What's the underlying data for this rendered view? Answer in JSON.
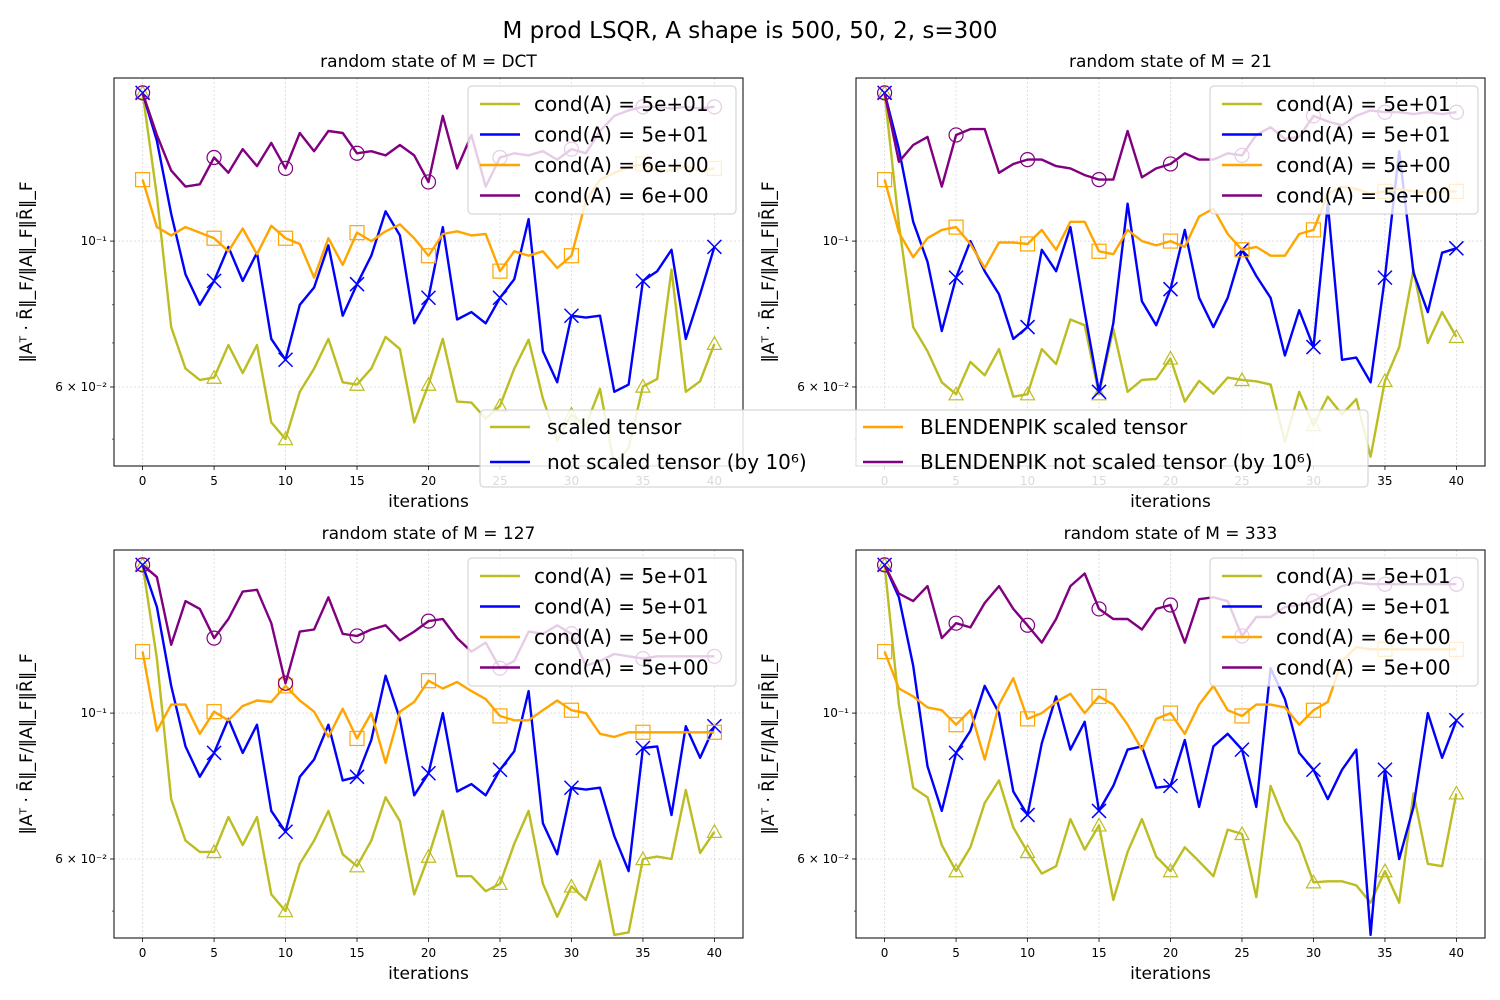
{
  "suptitle": "M prod LSQR, A shape is 500, 50, 2, s=300",
  "figure_legend": {
    "entries": [
      {
        "label": "scaled tensor",
        "color": "#bcbd22"
      },
      {
        "label": "not scaled tensor (by 10⁶)",
        "color": "#0000ff"
      },
      {
        "label": "BLENDENPIK scaled tensor",
        "color": "#ffa500"
      },
      {
        "label": "BLENDENPIK not scaled tensor (by 10⁶)",
        "color": "#800080"
      }
    ]
  },
  "chart_data": [
    {
      "type": "line",
      "title": "random state of M = DCT",
      "xlabel": "iterations",
      "ylabel": "‖Aᵀ · R̄‖_F/‖A‖_F‖R̄‖_F",
      "yscale": "log",
      "ylim": [
        0.0455,
        0.177
      ],
      "xlim": [
        -2,
        42
      ],
      "xticks": [
        0,
        5,
        10,
        15,
        20,
        25,
        30,
        35,
        40
      ],
      "yticks": [
        {
          "value": 0.1,
          "label": "10⁻¹"
        },
        {
          "value": 0.06,
          "label": "6 × 10⁻²"
        }
      ],
      "grid": true,
      "legend": [
        "cond(A) =  5e+01",
        "cond(A) =  5e+01",
        "cond(A) =  6e+00",
        "cond(A) =  6e+00"
      ],
      "series": [
        {
          "name": "scaled tensor",
          "color": "#bcbd22",
          "marker": "triangle",
          "values": [
            0.168,
            0.117,
            0.074,
            0.064,
            0.0615,
            0.062,
            0.0695,
            0.063,
            0.0695,
            0.053,
            0.05,
            0.059,
            0.064,
            0.071,
            0.061,
            0.0605,
            0.064,
            0.0715,
            0.0685,
            0.053,
            0.0605,
            0.071,
            0.057,
            0.0568,
            0.0537,
            0.0562,
            0.064,
            0.0708,
            0.0576,
            0.0498,
            0.0545,
            0.0524,
            0.0596,
            0.0455,
            0.0485,
            0.0601,
            0.0617,
            0.0905,
            0.059,
            0.0612,
            0.0698
          ]
        },
        {
          "name": "not scaled tensor (by 10⁶)",
          "color": "#0000ff",
          "marker": "x",
          "values": [
            0.168,
            0.142,
            0.11,
            0.089,
            0.08,
            0.087,
            0.098,
            0.087,
            0.096,
            0.071,
            0.066,
            0.08,
            0.085,
            0.0985,
            0.077,
            0.086,
            0.095,
            0.111,
            0.102,
            0.075,
            0.082,
            0.105,
            0.076,
            0.078,
            0.075,
            0.082,
            0.0875,
            0.108,
            0.068,
            0.061,
            0.077,
            0.0765,
            0.077,
            0.059,
            0.0605,
            0.087,
            0.09,
            0.097,
            0.071,
            0.083,
            0.098
          ]
        },
        {
          "name": "BLENDENPIK scaled tensor",
          "color": "#ffa500",
          "marker": "square",
          "values": [
            0.124,
            0.105,
            0.102,
            0.105,
            0.103,
            0.101,
            0.0965,
            0.1045,
            0.0955,
            0.1055,
            0.101,
            0.099,
            0.088,
            0.101,
            0.092,
            0.103,
            0.1,
            0.1035,
            0.106,
            0.101,
            0.095,
            0.1025,
            0.1035,
            0.102,
            0.1025,
            0.09,
            0.0965,
            0.095,
            0.0965,
            0.091,
            0.095,
            0.115,
            0.124,
            0.127,
            0.1295,
            0.131,
            0.128,
            0.128,
            0.13,
            0.128,
            0.129
          ]
        },
        {
          "name": "BLENDENPIK not scaled tensor (by 10⁶)",
          "color": "#800080",
          "marker": "circle",
          "values": [
            0.168,
            0.145,
            0.128,
            0.121,
            0.122,
            0.134,
            0.127,
            0.138,
            0.13,
            0.141,
            0.129,
            0.146,
            0.137,
            0.147,
            0.146,
            0.136,
            0.137,
            0.135,
            0.14,
            0.135,
            0.123,
            0.155,
            0.129,
            0.145,
            0.121,
            0.134,
            0.136,
            0.135,
            0.137,
            0.133,
            0.138,
            0.136,
            0.147,
            0.155,
            0.158,
            0.16,
            0.16,
            0.159,
            0.16,
            0.159,
            0.16
          ]
        }
      ]
    },
    {
      "type": "line",
      "title": "random state of M = 21",
      "xlabel": "iterations",
      "ylabel": "‖Aᵀ · R̄‖_F/‖A‖_F‖R̄‖_F",
      "yscale": "log",
      "ylim": [
        0.0455,
        0.177
      ],
      "xlim": [
        -2,
        42
      ],
      "xticks": [
        0,
        5,
        10,
        15,
        20,
        25,
        30,
        35,
        40
      ],
      "yticks": [
        {
          "value": 0.1,
          "label": "10⁻¹"
        },
        {
          "value": 0.06,
          "label": "6 × 10⁻²"
        }
      ],
      "grid": true,
      "legend": [
        "cond(A) =  5e+01",
        "cond(A) =  5e+01",
        "cond(A) =  5e+00",
        "cond(A) =  5e+00"
      ],
      "series": [
        {
          "name": "scaled tensor",
          "color": "#bcbd22",
          "marker": "triangle",
          "values": [
            0.168,
            0.106,
            0.074,
            0.068,
            0.061,
            0.0585,
            0.0655,
            0.0625,
            0.0685,
            0.058,
            0.0585,
            0.0685,
            0.065,
            0.076,
            0.0745,
            0.0585,
            0.0735,
            0.059,
            0.0615,
            0.0617,
            0.0663,
            0.057,
            0.0613,
            0.0586,
            0.062,
            0.0615,
            0.0612,
            0.0605,
            0.0495,
            0.059,
            0.0525,
            0.058,
            0.0545,
            0.0575,
            0.047,
            0.0613,
            0.069,
            0.0905,
            0.07,
            0.078,
            0.0715
          ]
        },
        {
          "name": "not scaled tensor (by 10⁶)",
          "color": "#0000ff",
          "marker": "x",
          "values": [
            0.168,
            0.138,
            0.107,
            0.093,
            0.073,
            0.088,
            0.1,
            0.09,
            0.083,
            0.071,
            0.074,
            0.097,
            0.09,
            0.105,
            0.078,
            0.059,
            0.075,
            0.114,
            0.081,
            0.0745,
            0.0845,
            0.104,
            0.082,
            0.074,
            0.082,
            0.097,
            0.0885,
            0.082,
            0.067,
            0.0785,
            0.069,
            0.114,
            0.066,
            0.0665,
            0.061,
            0.088,
            0.137,
            0.0895,
            0.078,
            0.096,
            0.0975
          ]
        },
        {
          "name": "BLENDENPIK scaled tensor",
          "color": "#ffa500",
          "marker": "square",
          "values": [
            0.124,
            0.103,
            0.0945,
            0.101,
            0.104,
            0.105,
            0.099,
            0.091,
            0.0995,
            0.0995,
            0.099,
            0.104,
            0.097,
            0.107,
            0.107,
            0.0965,
            0.0955,
            0.104,
            0.1,
            0.0985,
            0.1,
            0.098,
            0.109,
            0.112,
            0.1025,
            0.097,
            0.098,
            0.095,
            0.095,
            0.1025,
            0.104,
            0.118,
            0.121,
            0.12,
            0.118,
            0.119,
            0.12,
            0.119,
            0.1185,
            0.119,
            0.119
          ]
        },
        {
          "name": "BLENDENPIK not scaled tensor (by 10⁶)",
          "color": "#800080",
          "marker": "circle",
          "values": [
            0.168,
            0.132,
            0.14,
            0.144,
            0.121,
            0.145,
            0.148,
            0.148,
            0.127,
            0.131,
            0.133,
            0.133,
            0.13,
            0.129,
            0.126,
            0.124,
            0.124,
            0.147,
            0.125,
            0.129,
            0.131,
            0.136,
            0.133,
            0.133,
            0.136,
            0.135,
            0.145,
            0.149,
            0.143,
            0.144,
            0.155,
            0.152,
            0.15,
            0.155,
            0.158,
            0.157,
            0.157,
            0.156,
            0.157,
            0.156,
            0.157
          ]
        }
      ]
    },
    {
      "type": "line",
      "title": "random state of M = 127",
      "xlabel": "iterations",
      "ylabel": "‖Aᵀ · R̄‖_F/‖A‖_F‖R̄‖_F",
      "yscale": "log",
      "ylim": [
        0.0455,
        0.177
      ],
      "xlim": [
        -2,
        42
      ],
      "xticks": [
        0,
        5,
        10,
        15,
        20,
        25,
        30,
        35,
        40
      ],
      "yticks": [
        {
          "value": 0.1,
          "label": "10⁻¹"
        },
        {
          "value": 0.06,
          "label": "6 × 10⁻²"
        }
      ],
      "grid": true,
      "legend": [
        "cond(A) =  5e+01",
        "cond(A) =  5e+01",
        "cond(A) =  5e+00",
        "cond(A) =  5e+00"
      ],
      "series": [
        {
          "name": "scaled tensor",
          "color": "#bcbd22",
          "marker": "triangle",
          "values": [
            0.168,
            0.121,
            0.074,
            0.064,
            0.0615,
            0.0615,
            0.0695,
            0.063,
            0.0695,
            0.053,
            0.05,
            0.059,
            0.064,
            0.071,
            0.061,
            0.0585,
            0.064,
            0.0745,
            0.0685,
            0.053,
            0.0605,
            0.071,
            0.0565,
            0.0565,
            0.0536,
            0.055,
            0.0633,
            0.071,
            0.055,
            0.049,
            0.0545,
            0.052,
            0.0596,
            0.046,
            0.0464,
            0.06,
            0.0605,
            0.06,
            0.0764,
            0.0613,
            0.066
          ]
        },
        {
          "name": "not scaled tensor (by 10⁶)",
          "color": "#0000ff",
          "marker": "x",
          "values": [
            0.168,
            0.145,
            0.11,
            0.089,
            0.08,
            0.087,
            0.098,
            0.087,
            0.096,
            0.071,
            0.066,
            0.08,
            0.085,
            0.096,
            0.079,
            0.08,
            0.091,
            0.114,
            0.098,
            0.075,
            0.081,
            0.1,
            0.076,
            0.078,
            0.075,
            0.082,
            0.0875,
            0.108,
            0.068,
            0.061,
            0.077,
            0.0765,
            0.077,
            0.065,
            0.0575,
            0.0885,
            0.089,
            0.07,
            0.0955,
            0.0855,
            0.0955
          ]
        },
        {
          "name": "BLENDENPIK scaled tensor",
          "color": "#ffa500",
          "marker": "square",
          "values": [
            0.124,
            0.094,
            0.103,
            0.103,
            0.093,
            0.1005,
            0.0975,
            0.1025,
            0.1045,
            0.104,
            0.11,
            0.1045,
            0.1005,
            0.092,
            0.1015,
            0.0915,
            0.1,
            0.084,
            0.1005,
            0.104,
            0.112,
            0.109,
            0.1115,
            0.108,
            0.105,
            0.099,
            0.0975,
            0.0975,
            0.101,
            0.1045,
            0.101,
            0.1,
            0.093,
            0.092,
            0.0935,
            0.0935,
            0.0935,
            0.0935,
            0.0935,
            0.0935,
            0.0935
          ]
        },
        {
          "name": "BLENDENPIK not scaled tensor (by 10⁶)",
          "color": "#800080",
          "marker": "circle",
          "values": [
            0.168,
            0.161,
            0.127,
            0.148,
            0.144,
            0.13,
            0.139,
            0.153,
            0.154,
            0.137,
            0.111,
            0.133,
            0.134,
            0.15,
            0.132,
            0.131,
            0.134,
            0.136,
            0.129,
            0.133,
            0.138,
            0.139,
            0.13,
            0.124,
            0.128,
            0.117,
            0.12,
            0.133,
            0.132,
            0.136,
            0.132,
            0.118,
            0.12,
            0.123,
            0.122,
            0.121,
            0.122,
            0.122,
            0.122,
            0.122,
            0.122
          ]
        }
      ]
    },
    {
      "type": "line",
      "title": "random state of M = 333",
      "xlabel": "iterations",
      "ylabel": "‖Aᵀ · R̄‖_F/‖A‖_F‖R̄‖_F",
      "yscale": "log",
      "ylim": [
        0.0455,
        0.177
      ],
      "xlim": [
        -2,
        42
      ],
      "xticks": [
        0,
        5,
        10,
        15,
        20,
        25,
        30,
        35,
        40
      ],
      "yticks": [
        {
          "value": 0.1,
          "label": "10⁻¹"
        },
        {
          "value": 0.06,
          "label": "6 × 10⁻²"
        }
      ],
      "grid": true,
      "legend": [
        "cond(A) =  5e+01",
        "cond(A) =  5e+01",
        "cond(A) =  6e+00",
        "cond(A) =  5e+00"
      ],
      "series": [
        {
          "name": "scaled tensor",
          "color": "#bcbd22",
          "marker": "triangle",
          "values": [
            0.168,
            0.103,
            0.077,
            0.0745,
            0.063,
            0.0575,
            0.0625,
            0.073,
            0.079,
            0.067,
            0.0615,
            0.057,
            0.0585,
            0.069,
            0.062,
            0.0675,
            0.052,
            0.0615,
            0.069,
            0.0605,
            0.0575,
            0.0625,
            0.0595,
            0.0565,
            0.0665,
            0.0655,
            0.0525,
            0.0775,
            0.0685,
            0.0635,
            0.0553,
            0.0555,
            0.0555,
            0.0547,
            0.0515,
            0.0575,
            0.0515,
            0.0755,
            0.059,
            0.0585,
            0.0755
          ]
        },
        {
          "name": "not scaled tensor (by 10⁶)",
          "color": "#0000ff",
          "marker": "x",
          "values": [
            0.168,
            0.15,
            0.118,
            0.083,
            0.071,
            0.087,
            0.094,
            0.11,
            0.1,
            0.076,
            0.07,
            0.09,
            0.106,
            0.088,
            0.097,
            0.071,
            0.0775,
            0.088,
            0.089,
            0.077,
            0.0775,
            0.091,
            0.072,
            0.089,
            0.093,
            0.088,
            0.072,
            0.117,
            0.105,
            0.087,
            0.082,
            0.074,
            0.082,
            0.088,
            0.046,
            0.082,
            0.06,
            0.072,
            0.1,
            0.0855,
            0.0975
          ]
        },
        {
          "name": "BLENDENPIK scaled tensor",
          "color": "#ffa500",
          "marker": "square",
          "values": [
            0.124,
            0.109,
            0.106,
            0.102,
            0.101,
            0.096,
            0.101,
            0.085,
            0.103,
            0.113,
            0.098,
            0.1,
            0.104,
            0.107,
            0.1,
            0.106,
            0.103,
            0.096,
            0.088,
            0.098,
            0.1,
            0.093,
            0.103,
            0.11,
            0.101,
            0.099,
            0.103,
            0.103,
            0.102,
            0.096,
            0.101,
            0.104,
            0.12,
            0.126,
            0.125,
            0.125,
            0.125,
            0.125,
            0.125,
            0.125,
            0.125
          ]
        },
        {
          "name": "BLENDENPIK not scaled tensor (by 10⁶)",
          "color": "#800080",
          "marker": "circle",
          "values": [
            0.168,
            0.152,
            0.148,
            0.156,
            0.13,
            0.137,
            0.135,
            0.147,
            0.156,
            0.144,
            0.136,
            0.128,
            0.139,
            0.156,
            0.163,
            0.144,
            0.139,
            0.139,
            0.134,
            0.144,
            0.146,
            0.128,
            0.149,
            0.15,
            0.148,
            0.131,
            0.14,
            0.14,
            0.145,
            0.146,
            0.148,
            0.152,
            0.156,
            0.158,
            0.157,
            0.157,
            0.157,
            0.157,
            0.157,
            0.157,
            0.157
          ]
        }
      ]
    }
  ]
}
